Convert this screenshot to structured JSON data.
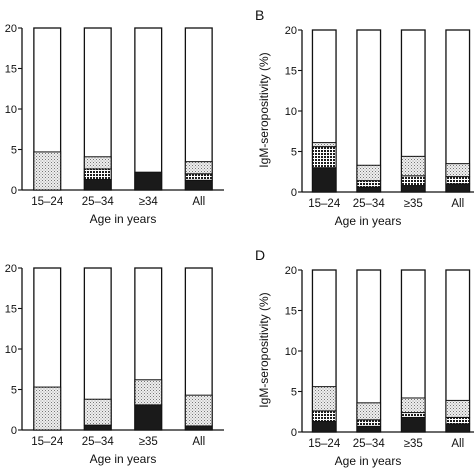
{
  "colors": {
    "ink": "#111111",
    "background": "#ffffff"
  },
  "segment_styles": [
    {
      "fill": "#1a1a1a",
      "pattern": "solid"
    },
    {
      "fill": "#3a3a3a",
      "pattern": "crosshatch"
    },
    {
      "fill": "#d8d8d8",
      "pattern": "dots"
    }
  ],
  "chart_data": [
    {
      "type": "bar",
      "stacked": true,
      "panel_label": "",
      "categories": [
        "15–24",
        "25–34",
        "≥34",
        "All"
      ],
      "xlabel": "Age in years",
      "ylabel": "",
      "ylim": [
        0,
        20
      ],
      "yticks": [
        0,
        5,
        10,
        15,
        20
      ],
      "grid": false,
      "segments": [
        [
          0,
          0,
          4.7
        ],
        [
          1.3,
          1.3,
          1.5
        ],
        [
          2.2
        ],
        [
          1.2,
          0.8,
          1.5
        ]
      ]
    },
    {
      "type": "bar",
      "stacked": true,
      "panel_label": "B",
      "categories": [
        "15–24",
        "25–34",
        "≥35",
        "All"
      ],
      "xlabel": "Age in years",
      "ylabel": "IgM-seropositivity (%)",
      "ylim": [
        0,
        20
      ],
      "yticks": [
        0,
        5,
        10,
        15,
        20
      ],
      "grid": false,
      "segments": [
        [
          3.0,
          2.6,
          0.5
        ],
        [
          0.6,
          0.8,
          1.9
        ],
        [
          0.8,
          1.2,
          2.4
        ],
        [
          1.0,
          0.9,
          1.6
        ]
      ]
    },
    {
      "type": "bar",
      "stacked": true,
      "panel_label": "",
      "categories": [
        "15–24",
        "25–34",
        "≥35",
        "All"
      ],
      "xlabel": "Age in years",
      "ylabel": "",
      "ylim": [
        0,
        20
      ],
      "yticks": [
        0,
        5,
        10,
        15,
        20
      ],
      "grid": false,
      "segments": [
        [
          0,
          0,
          5.3
        ],
        [
          0.6,
          0,
          3.2
        ],
        [
          3.1,
          0,
          3.1
        ],
        [
          0.5,
          0,
          3.8
        ]
      ]
    },
    {
      "type": "bar",
      "stacked": true,
      "panel_label": "D",
      "categories": [
        "15–24",
        "25–34",
        "≥35",
        "All"
      ],
      "xlabel": "Age in years",
      "ylabel": "IgM-seropositivity (%)",
      "ylim": [
        0,
        20
      ],
      "yticks": [
        0,
        5,
        10,
        15,
        20
      ],
      "grid": false,
      "segments": [
        [
          1.3,
          1.3,
          3.0
        ],
        [
          0.7,
          0.8,
          2.1
        ],
        [
          1.8,
          0.6,
          1.8
        ],
        [
          1.0,
          0.8,
          2.1
        ]
      ]
    }
  ]
}
